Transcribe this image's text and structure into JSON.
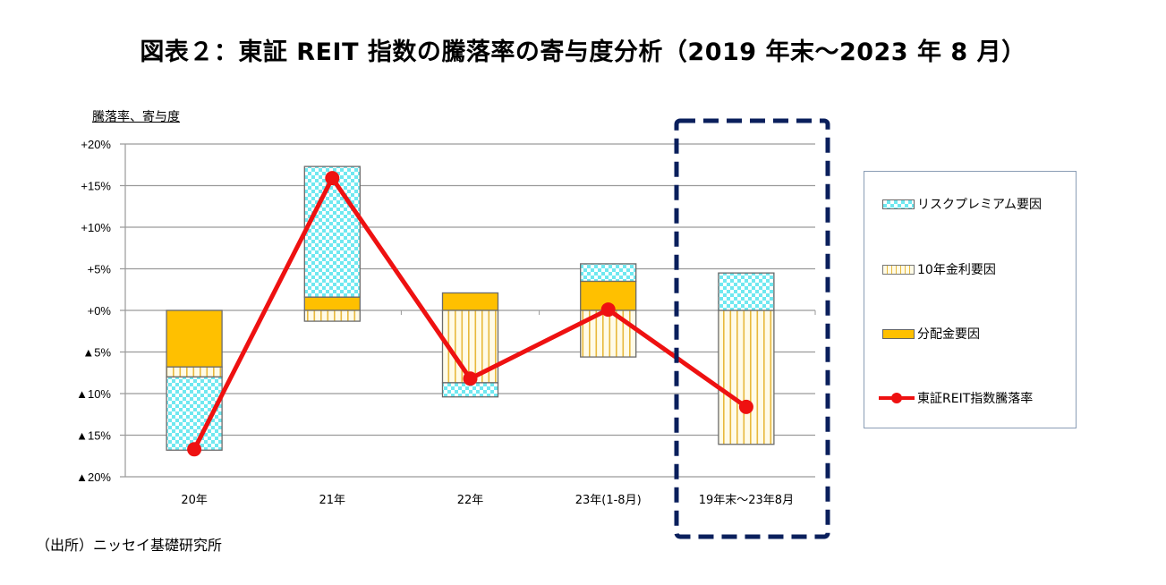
{
  "title": "図表２：東証 REIT 指数の騰落率の寄与度分析（2019 年末～2023 年 8 月）",
  "y_axis_label": "騰落率、寄与度",
  "source": "（出所）ニッセイ基礎研究所",
  "legend": {
    "risk": "リスクプレミアム要因",
    "rate": "10年金利要因",
    "dist": "分配金要因",
    "line": "東証REIT指数騰落率"
  },
  "colors": {
    "risk": "#6fe8f0",
    "rate_stripe": "#e8b93c",
    "dist": "#ffc000",
    "line": "#ee1111",
    "highlight_box": "#0a1f5c",
    "grid": "#9a9a9a"
  },
  "chart_data": {
    "type": "bar",
    "subtype": "stacked bar + line",
    "title": "図表２：東証 REIT 指数の騰落率の寄与度分析（2019 年末～2023 年 8 月）",
    "xlabel": "",
    "ylabel": "騰落率、寄与度",
    "ylim": [
      -20,
      20
    ],
    "yticks": [
      20,
      15,
      10,
      5,
      0,
      -5,
      -10,
      -15,
      -20
    ],
    "ytick_labels": [
      "+20%",
      "+15%",
      "+10%",
      "+5%",
      "+0%",
      "▲5%",
      "▲10%",
      "▲15%",
      "▲20%"
    ],
    "grid": true,
    "legend_position": "right",
    "categories": [
      "20年",
      "21年",
      "22年",
      "23年(1-8月)",
      "19年末～23年8月"
    ],
    "series": [
      {
        "name": "リスクプレミアム要因",
        "kind": "bar",
        "values": [
          -8.8,
          15.7,
          -1.7,
          2.1,
          4.5
        ]
      },
      {
        "name": "10年金利要因",
        "kind": "bar",
        "values": [
          -1.2,
          -1.3,
          -8.7,
          -5.6,
          -16.1
        ]
      },
      {
        "name": "分配金要因",
        "kind": "bar",
        "values": [
          -6.8,
          1.6,
          2.1,
          3.5,
          0.0
        ]
      },
      {
        "name": "東証REIT指数騰落率",
        "kind": "line",
        "values": [
          -16.7,
          15.9,
          -8.2,
          0.1,
          -11.6
        ]
      }
    ],
    "annotations": [
      "Dashed box highlighting 19年末～23年8月"
    ]
  }
}
